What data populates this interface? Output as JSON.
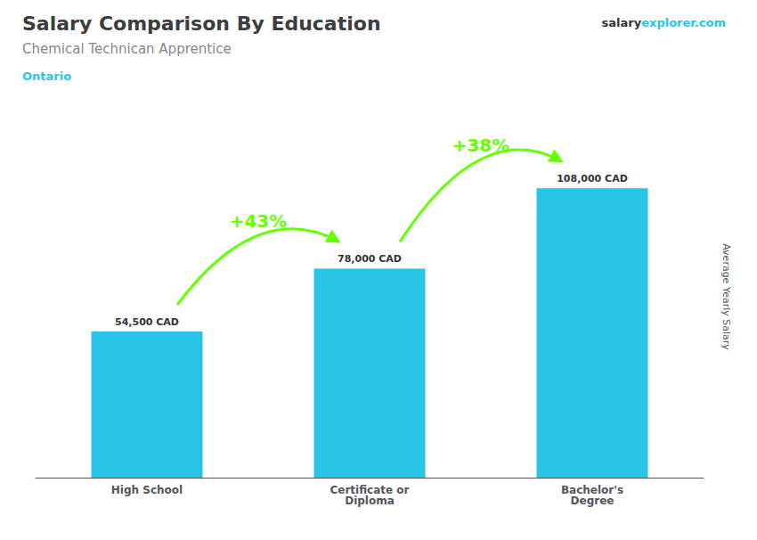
{
  "chart_data": {
    "type": "bar",
    "title": "Salary Comparison By Education",
    "subtitle": "Chemical Technican Apprentice",
    "annotations": [
      {
        "text": "Ontario"
      },
      {
        "text": "salary"
      },
      {
        "text": "explorer.com"
      },
      {
        "text": "+43%",
        "from": "High School",
        "to": "Certificate or\nDiploma",
        "color": "#66ff00"
      },
      {
        "text": "+38%",
        "from": "Certificate or\nDiploma",
        "to": "Bachelor's\nDegree",
        "color": "#66ff00"
      }
    ],
    "ylabel": "Average Yearly Salary",
    "categories": [
      "High School",
      "Certificate or\nDiploma",
      "Bachelor's\nDegree"
    ],
    "values": [
      54500,
      78000,
      108000
    ],
    "value_labels": [
      "54,500 CAD",
      "78,000 CAD",
      "108,000 CAD"
    ],
    "data_labels": true,
    "color": "#29c5e6",
    "ylim": [
      0,
      135000
    ],
    "tick_labels": "x",
    "grid": false
  }
}
